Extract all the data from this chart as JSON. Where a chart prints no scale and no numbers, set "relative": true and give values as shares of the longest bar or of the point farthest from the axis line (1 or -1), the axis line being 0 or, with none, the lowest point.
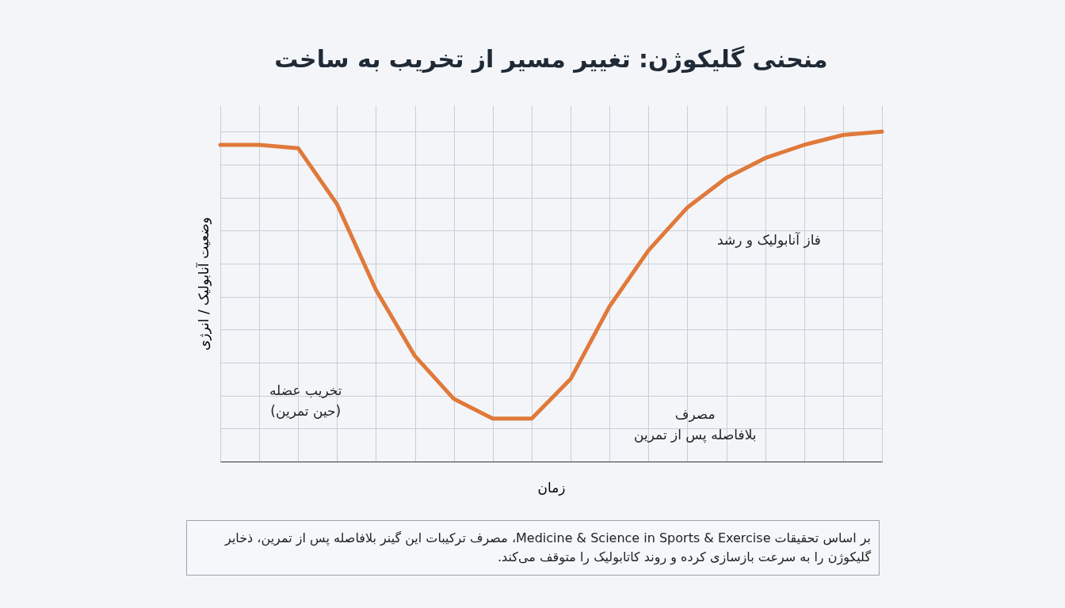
{
  "chart_data": {
    "type": "line",
    "title": "منحنی گلیکوژن: تغییر مسیر از تخریب به ساخت",
    "xlabel": "زمان",
    "ylabel": "وضعیت آنابولیک / انرژی",
    "relative": true,
    "grid": true,
    "tick_labels": false,
    "categories": [
      null,
      null,
      null,
      null,
      null,
      null,
      null,
      null,
      null,
      null,
      null,
      null,
      null,
      null,
      null,
      null,
      null,
      null
    ],
    "series": [
      {
        "color": "#e0793a",
        "values": [
          0.96,
          0.96,
          0.95,
          0.78,
          0.52,
          0.32,
          0.19,
          0.13,
          0.13,
          0.25,
          0.47,
          0.64,
          0.77,
          0.86,
          0.92,
          0.96,
          0.99,
          1
        ]
      }
    ],
    "annotations": [
      "تخریب عضله\n(حین تمرین)",
      "فاز آنابولیک و رشد",
      "مصرف\nبلافاصله پس از تمرین",
      "بر اساس تحقیقات Medicine & Science in Sports & Exercise، مصرف ترکیبات این گینر بلافاصله پس از تمرین، ذخایر گلیکوژن را به سرعت بازسازی کرده و روند کاتابولیک را متوقف می‌کند."
    ]
  }
}
